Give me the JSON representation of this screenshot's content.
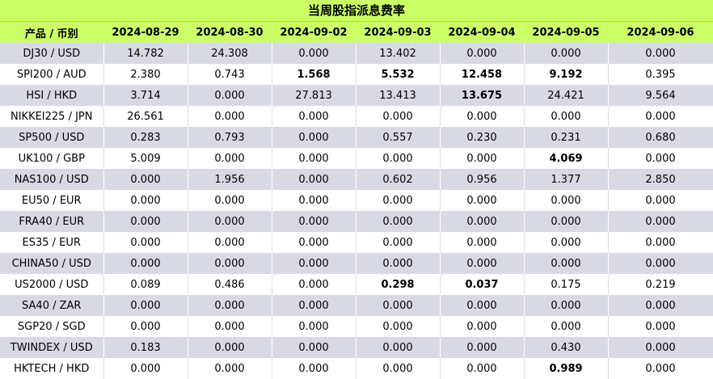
{
  "title": "当周股指派息费率",
  "header": {
    "product_label": "产品 / 币别",
    "dates": [
      "2024-08-29",
      "2024-08-30",
      "2024-09-02",
      "2024-09-03",
      "2024-09-04",
      "2024-09-05",
      "2024-09-06"
    ]
  },
  "rows": [
    {
      "product": "DJ30 / USD",
      "values": [
        "14.782",
        "24.308",
        "0.000",
        "13.402",
        "0.000",
        "0.000",
        "0.000"
      ],
      "bold": []
    },
    {
      "product": "SPI200 / AUD",
      "values": [
        "2.380",
        "0.743",
        "1.568",
        "5.532",
        "12.458",
        "9.192",
        "0.395"
      ],
      "bold": [
        2,
        3,
        4,
        5
      ]
    },
    {
      "product": "HSI / HKD",
      "values": [
        "3.714",
        "0.000",
        "27.813",
        "13.413",
        "13.675",
        "24.421",
        "9.564"
      ],
      "bold": [
        4
      ]
    },
    {
      "product": "NIKKEI225 / JPN",
      "values": [
        "26.561",
        "0.000",
        "0.000",
        "0.000",
        "0.000",
        "0.000",
        "0.000"
      ],
      "bold": []
    },
    {
      "product": "SP500 / USD",
      "values": [
        "0.283",
        "0.793",
        "0.000",
        "0.557",
        "0.230",
        "0.231",
        "0.680"
      ],
      "bold": []
    },
    {
      "product": "UK100 / GBP",
      "values": [
        "5.009",
        "0.000",
        "0.000",
        "0.000",
        "0.000",
        "4.069",
        "0.000"
      ],
      "bold": [
        5
      ]
    },
    {
      "product": "NAS100 / USD",
      "values": [
        "0.000",
        "1.956",
        "0.000",
        "0.602",
        "0.956",
        "1.377",
        "2.850"
      ],
      "bold": []
    },
    {
      "product": "EU50 / EUR",
      "values": [
        "0.000",
        "0.000",
        "0.000",
        "0.000",
        "0.000",
        "0.000",
        "0.000"
      ],
      "bold": []
    },
    {
      "product": "FRA40 / EUR",
      "values": [
        "0.000",
        "0.000",
        "0.000",
        "0.000",
        "0.000",
        "0.000",
        "0.000"
      ],
      "bold": []
    },
    {
      "product": "ES35 / EUR",
      "values": [
        "0.000",
        "0.000",
        "0.000",
        "0.000",
        "0.000",
        "0.000",
        "0.000"
      ],
      "bold": []
    },
    {
      "product": "CHINA50 / USD",
      "values": [
        "0.000",
        "0.000",
        "0.000",
        "0.000",
        "0.000",
        "0.000",
        "0.000"
      ],
      "bold": []
    },
    {
      "product": "US2000 / USD",
      "values": [
        "0.089",
        "0.486",
        "0.000",
        "0.298",
        "0.037",
        "0.175",
        "0.219"
      ],
      "bold": [
        3,
        4
      ]
    },
    {
      "product": "SA40 / ZAR",
      "values": [
        "0.000",
        "0.000",
        "0.000",
        "0.000",
        "0.000",
        "0.000",
        "0.000"
      ],
      "bold": []
    },
    {
      "product": "SGP20 / SGD",
      "values": [
        "0.000",
        "0.000",
        "0.000",
        "0.000",
        "0.000",
        "0.000",
        "0.000"
      ],
      "bold": []
    },
    {
      "product": "TWINDEX / USD",
      "values": [
        "0.183",
        "0.000",
        "0.000",
        "0.000",
        "0.000",
        "0.430",
        "0.000"
      ],
      "bold": []
    },
    {
      "product": "HKTECH / HKD",
      "values": [
        "0.000",
        "0.000",
        "0.000",
        "0.000",
        "0.000",
        "0.989",
        "0.000"
      ],
      "bold": [
        5
      ]
    }
  ]
}
